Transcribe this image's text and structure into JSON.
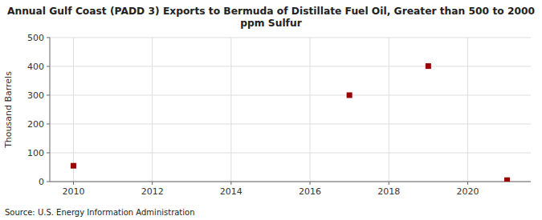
{
  "chart_data": {
    "type": "scatter",
    "title": "Annual Gulf Coast (PADD 3) Exports to Bermuda of Distillate Fuel Oil, Greater than 500 to 2000\nppm Sulfur",
    "ylabel": "Thousand Barrels",
    "source": "Source: U.S. Energy Information Administration",
    "x": [
      2010,
      2017,
      2019,
      2021
    ],
    "values": [
      55,
      300,
      401,
      5
    ],
    "xlim": [
      2009.4,
      2021.6
    ],
    "ylim": [
      0,
      500
    ],
    "xticks": [
      2010,
      2012,
      2014,
      2016,
      2018,
      2020
    ],
    "yticks": [
      0,
      100,
      200,
      300,
      400,
      500
    ],
    "color": "#990000",
    "marker": "square",
    "grid": true
  }
}
